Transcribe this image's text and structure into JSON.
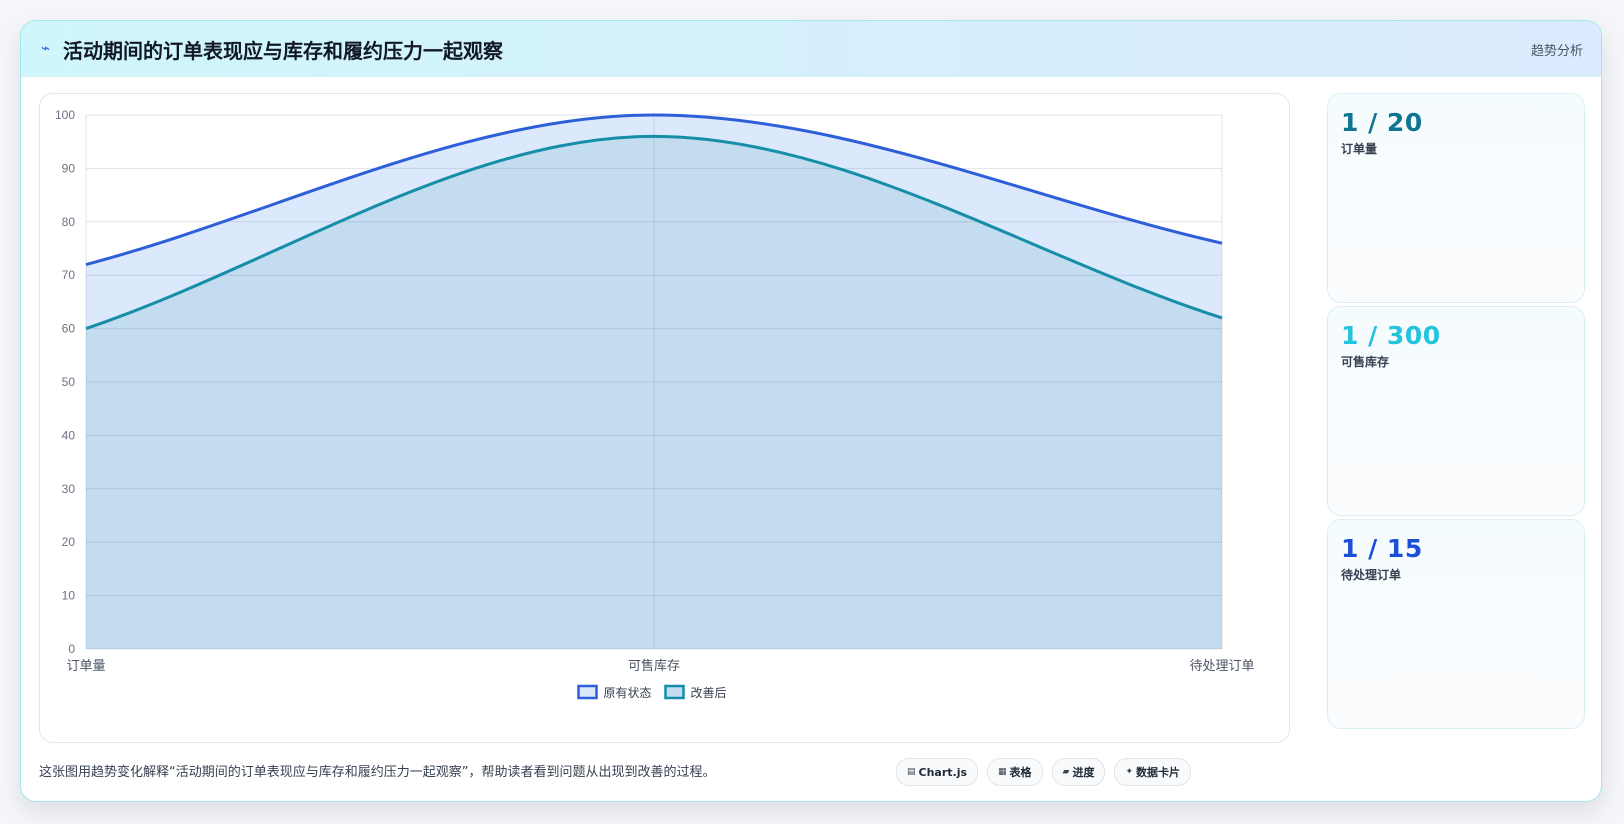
{
  "header": {
    "icon": "⌁",
    "title": "活动期间的订单表现应与库存和履约压力一起观察",
    "tag": "趋势分析"
  },
  "chart_data": {
    "type": "area",
    "categories": [
      "订单量",
      "可售库存",
      "待处理订单"
    ],
    "series": [
      {
        "name": "原有状态",
        "values": [
          72,
          100,
          76
        ],
        "color": "#2d5fd8",
        "fill": "#dce8fb"
      },
      {
        "name": "改善后",
        "values": [
          60,
          96,
          62
        ],
        "color": "#168ea8",
        "fill": "#c3dcf0"
      }
    ],
    "ylim": [
      0,
      100
    ],
    "yticks": [
      0,
      10,
      20,
      30,
      40,
      50,
      60,
      70,
      80,
      90,
      100
    ],
    "grid": true,
    "legend": "bottom"
  },
  "kpis": [
    {
      "value": "1 / 20",
      "label": "订单量",
      "color": "#0e7490"
    },
    {
      "value": "1 / 300",
      "label": "可售库存",
      "color": "#22c3dc"
    },
    {
      "value": "1 / 15",
      "label": "待处理订单",
      "color": "#1d4ed8"
    }
  ],
  "footer": {
    "note": "这张图用趋势变化解释“活动期间的订单表现应与库存和履约压力一起观察”，帮助读者看到问题从出现到改善的过程。",
    "chips": [
      {
        "icon": "▤",
        "label": "Chart.js"
      },
      {
        "icon": "▦",
        "label": "表格"
      },
      {
        "icon": "▰",
        "label": "进度"
      },
      {
        "icon": "✦",
        "label": "数据卡片"
      }
    ]
  }
}
